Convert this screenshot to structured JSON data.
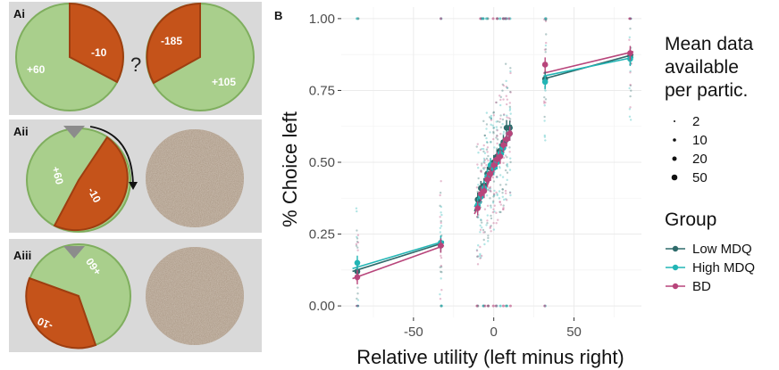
{
  "panels": {
    "ai": {
      "label": "Ai",
      "left_pie": {
        "green_value": "+60",
        "orange_value": "-10"
      },
      "question": "?",
      "right_pie": {
        "green_value": "+105",
        "orange_value": "-185"
      }
    },
    "aii": {
      "label": "Aii",
      "pie": {
        "green_value": "+60",
        "orange_value": "-10"
      }
    },
    "aiii": {
      "label": "Aiii",
      "pie": {
        "green_value": "+60",
        "orange_value": "-10"
      }
    },
    "b": {
      "label": "B"
    }
  },
  "colors": {
    "panel_bg": "#d9d9d9",
    "pie_green": "#a9cf8c",
    "pie_green_border": "#7fae5e",
    "pie_orange": "#c5531a",
    "pie_orange_border": "#9e3e10",
    "texture": "#a08c78",
    "marker": "#8c8c8c"
  },
  "chart_data": {
    "type": "scatter",
    "xlabel": "Relative utility (left minus right)",
    "ylabel": "% Choice left",
    "xlim": [
      -95,
      92
    ],
    "ylim": [
      -0.04,
      1.04
    ],
    "x_ticks": [
      -50,
      0,
      50
    ],
    "x_tick_labels": [
      "-50",
      "0",
      "50"
    ],
    "y_ticks": [
      0,
      0.25,
      0.5,
      0.75,
      1.0
    ],
    "y_tick_labels": [
      "0.00",
      "0.25",
      "0.50",
      "0.75",
      "1.00"
    ],
    "grid": true,
    "legend_size_title_lines": [
      "Mean data",
      "available",
      " per partic."
    ],
    "size_legend": [
      "2",
      "10",
      "20",
      "50"
    ],
    "legend_group_title": "Group",
    "series": [
      {
        "name": "Low MDQ",
        "color": "#2e6b6b",
        "points": [
          [
            -85,
            0.12
          ],
          [
            -33,
            0.21
          ],
          [
            -10,
            0.37
          ],
          [
            -8,
            0.41
          ],
          [
            -6,
            0.42
          ],
          [
            -4,
            0.46
          ],
          [
            -2,
            0.48
          ],
          [
            0,
            0.5
          ],
          [
            2,
            0.52
          ],
          [
            4,
            0.54
          ],
          [
            6,
            0.57
          ],
          [
            8,
            0.62
          ],
          [
            10,
            0.62
          ],
          [
            32,
            0.79
          ],
          [
            85,
            0.87
          ]
        ]
      },
      {
        "name": "High MDQ",
        "color": "#22b5b5",
        "points": [
          [
            -85,
            0.15
          ],
          [
            -33,
            0.22
          ],
          [
            -10,
            0.35
          ],
          [
            -8,
            0.38
          ],
          [
            -6,
            0.41
          ],
          [
            -4,
            0.45
          ],
          [
            -2,
            0.49
          ],
          [
            0,
            0.48
          ],
          [
            2,
            0.5
          ],
          [
            4,
            0.53
          ],
          [
            6,
            0.55
          ],
          [
            8,
            0.58
          ],
          [
            10,
            0.6
          ],
          [
            32,
            0.78
          ],
          [
            85,
            0.86
          ]
        ]
      },
      {
        "name": "BD",
        "color": "#b8457b",
        "points": [
          [
            -85,
            0.1
          ],
          [
            -33,
            0.21
          ],
          [
            -10,
            0.34
          ],
          [
            -8,
            0.39
          ],
          [
            -6,
            0.4
          ],
          [
            -4,
            0.44
          ],
          [
            -2,
            0.46
          ],
          [
            0,
            0.49
          ],
          [
            2,
            0.51
          ],
          [
            4,
            0.52
          ],
          [
            6,
            0.56
          ],
          [
            8,
            0.58
          ],
          [
            10,
            0.6
          ],
          [
            32,
            0.84
          ],
          [
            85,
            0.88
          ]
        ]
      }
    ],
    "fit_lines": [
      {
        "name": "Low MDQ",
        "segments": [
          [
            [
              -88,
              0.12
            ],
            [
              -31,
              0.22
            ]
          ],
          [
            [
              -12,
              0.33
            ],
            [
              11,
              0.63
            ]
          ],
          [
            [
              31,
              0.79
            ],
            [
              87,
              0.875
            ]
          ]
        ]
      },
      {
        "name": "High MDQ",
        "segments": [
          [
            [
              -88,
              0.13
            ],
            [
              -31,
              0.225
            ]
          ],
          [
            [
              -12,
              0.345
            ],
            [
              11,
              0.6
            ]
          ],
          [
            [
              31,
              0.8
            ],
            [
              87,
              0.865
            ]
          ]
        ]
      },
      {
        "name": "BD",
        "segments": [
          [
            [
              -88,
              0.095
            ],
            [
              -31,
              0.21
            ]
          ],
          [
            [
              -12,
              0.32
            ],
            [
              11,
              0.61
            ]
          ],
          [
            [
              31,
              0.81
            ],
            [
              87,
              0.885
            ]
          ]
        ]
      }
    ]
  }
}
